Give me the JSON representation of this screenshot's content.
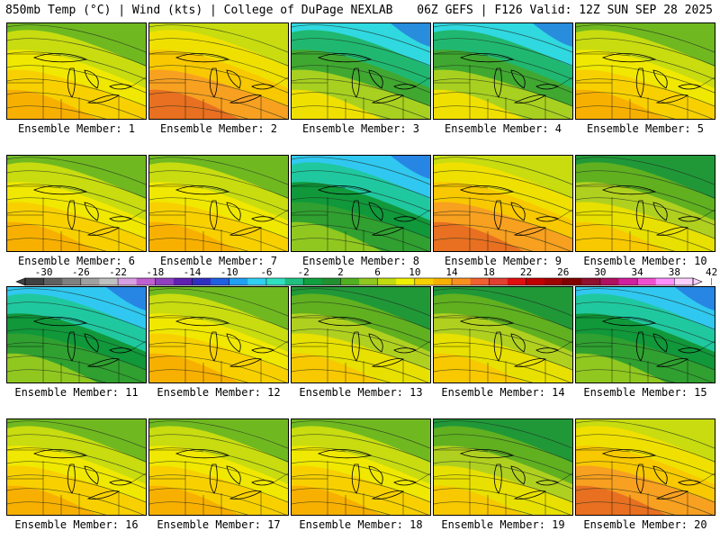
{
  "header": {
    "left_title": "850mb Temp (°C) | Wind (kts) | College of DuPage NEXLAB",
    "right_title": "06Z GEFS | F126 Valid: 12Z SUN SEP 28 2025"
  },
  "colorbar": {
    "tick_labels": [
      "-30",
      "-26",
      "-22",
      "-18",
      "-14",
      "-10",
      "-6",
      "-2",
      "2",
      "6",
      "10",
      "14",
      "18",
      "22",
      "26",
      "30",
      "34",
      "38",
      "42"
    ],
    "colors": [
      "#404040",
      "#606060",
      "#808080",
      "#a0a0a0",
      "#c0c0c0",
      "#d8a0e0",
      "#c060d0",
      "#9040c0",
      "#6020b0",
      "#3030c0",
      "#2060e0",
      "#20a0f0",
      "#30d0f0",
      "#30e0c0",
      "#20c080",
      "#10a040",
      "#209030",
      "#50b020",
      "#90c820",
      "#c0dc10",
      "#f0f000",
      "#f8d000",
      "#f8b000",
      "#f89020",
      "#f06030",
      "#e04030",
      "#e01010",
      "#c00000",
      "#a00000",
      "#800000",
      "#901030",
      "#b01060",
      "#d020a0",
      "#f050d0",
      "#ff90ff",
      "#ffd0ff"
    ]
  },
  "panels": [
    {
      "label": "Ensemble Member: 1",
      "style": "warm"
    },
    {
      "label": "Ensemble Member: 2",
      "style": "hot"
    },
    {
      "label": "Ensemble Member: 3",
      "style": "cool"
    },
    {
      "label": "Ensemble Member: 4",
      "style": "cool"
    },
    {
      "label": "Ensemble Member: 5",
      "style": "warm"
    },
    {
      "label": "Ensemble Member: 6",
      "style": "warm"
    },
    {
      "label": "Ensemble Member: 7",
      "style": "warm"
    },
    {
      "label": "Ensemble Member: 8",
      "style": "cold"
    },
    {
      "label": "Ensemble Member: 9",
      "style": "hot"
    },
    {
      "label": "Ensemble Member: 10",
      "style": "mild"
    },
    {
      "label": "Ensemble Member: 11",
      "style": "cold"
    },
    {
      "label": "Ensemble Member: 12",
      "style": "warm"
    },
    {
      "label": "Ensemble Member: 13",
      "style": "mild"
    },
    {
      "label": "Ensemble Member: 14",
      "style": "mild"
    },
    {
      "label": "Ensemble Member: 15",
      "style": "cold"
    },
    {
      "label": "Ensemble Member: 16",
      "style": "warm"
    },
    {
      "label": "Ensemble Member: 17",
      "style": "warm"
    },
    {
      "label": "Ensemble Member: 18",
      "style": "warm"
    },
    {
      "label": "Ensemble Member: 19",
      "style": "mild"
    },
    {
      "label": "Ensemble Member: 20",
      "style": "hot"
    }
  ]
}
